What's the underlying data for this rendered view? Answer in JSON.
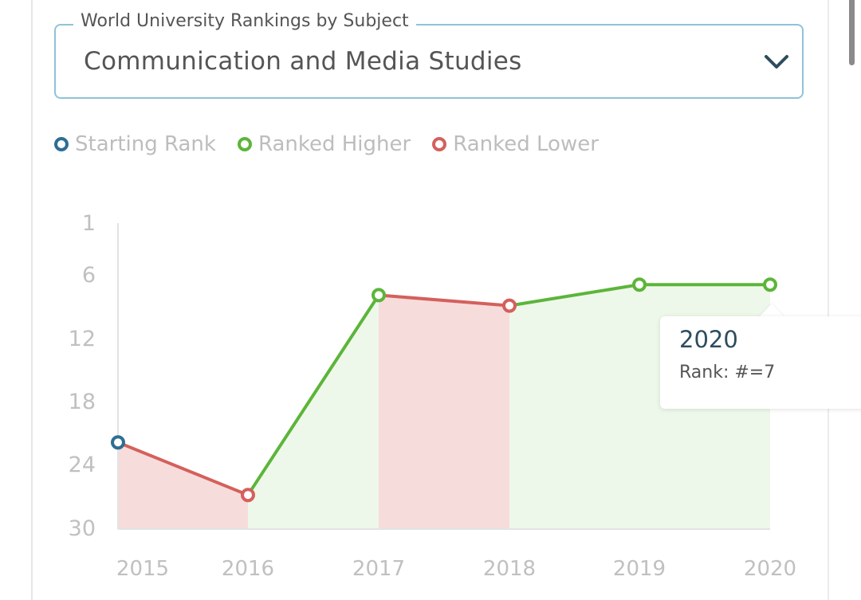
{
  "selector": {
    "label": "World University Rankings by Subject",
    "value": "Communication and Media Studies",
    "icon": "chevron-down-icon"
  },
  "legend": [
    {
      "label": "Starting Rank",
      "color": "#2e6e93"
    },
    {
      "label": "Ranked Higher",
      "color": "#5cb53a"
    },
    {
      "label": "Ranked Lower",
      "color": "#d4605c"
    }
  ],
  "tooltip": {
    "year": "2020",
    "rank": "Rank: #=7"
  },
  "colors": {
    "starting": "#2e6e93",
    "higher": "#5cb53a",
    "lower": "#d4605c",
    "higher_fill": "#eef8ea",
    "lower_fill": "#f7dcdc",
    "select_border": "#8fc3d8"
  },
  "chart_data": {
    "type": "line",
    "title": "World University Rankings by Subject — Communication and Media Studies",
    "xlabel": "",
    "ylabel": "Rank",
    "categories": [
      "2015",
      "2016",
      "2017",
      "2018",
      "2019",
      "2020"
    ],
    "series": [
      {
        "name": "Rank",
        "values": [
          22,
          27,
          8,
          9,
          7,
          7
        ]
      }
    ],
    "point_status": [
      "Starting Rank",
      "Ranked Lower",
      "Ranked Higher",
      "Ranked Lower",
      "Ranked Higher",
      "Ranked Higher"
    ],
    "y_ticks": [
      "1",
      "6",
      "12",
      "18",
      "24",
      "30"
    ],
    "ylim": [
      30,
      1
    ],
    "y_inverted": true,
    "grid": false,
    "legend_position": "top",
    "legend": [
      "Starting Rank",
      "Ranked Higher",
      "Ranked Lower"
    ],
    "annotations": [
      {
        "x": "2020",
        "text": "2020 / Rank: #=7"
      }
    ]
  }
}
